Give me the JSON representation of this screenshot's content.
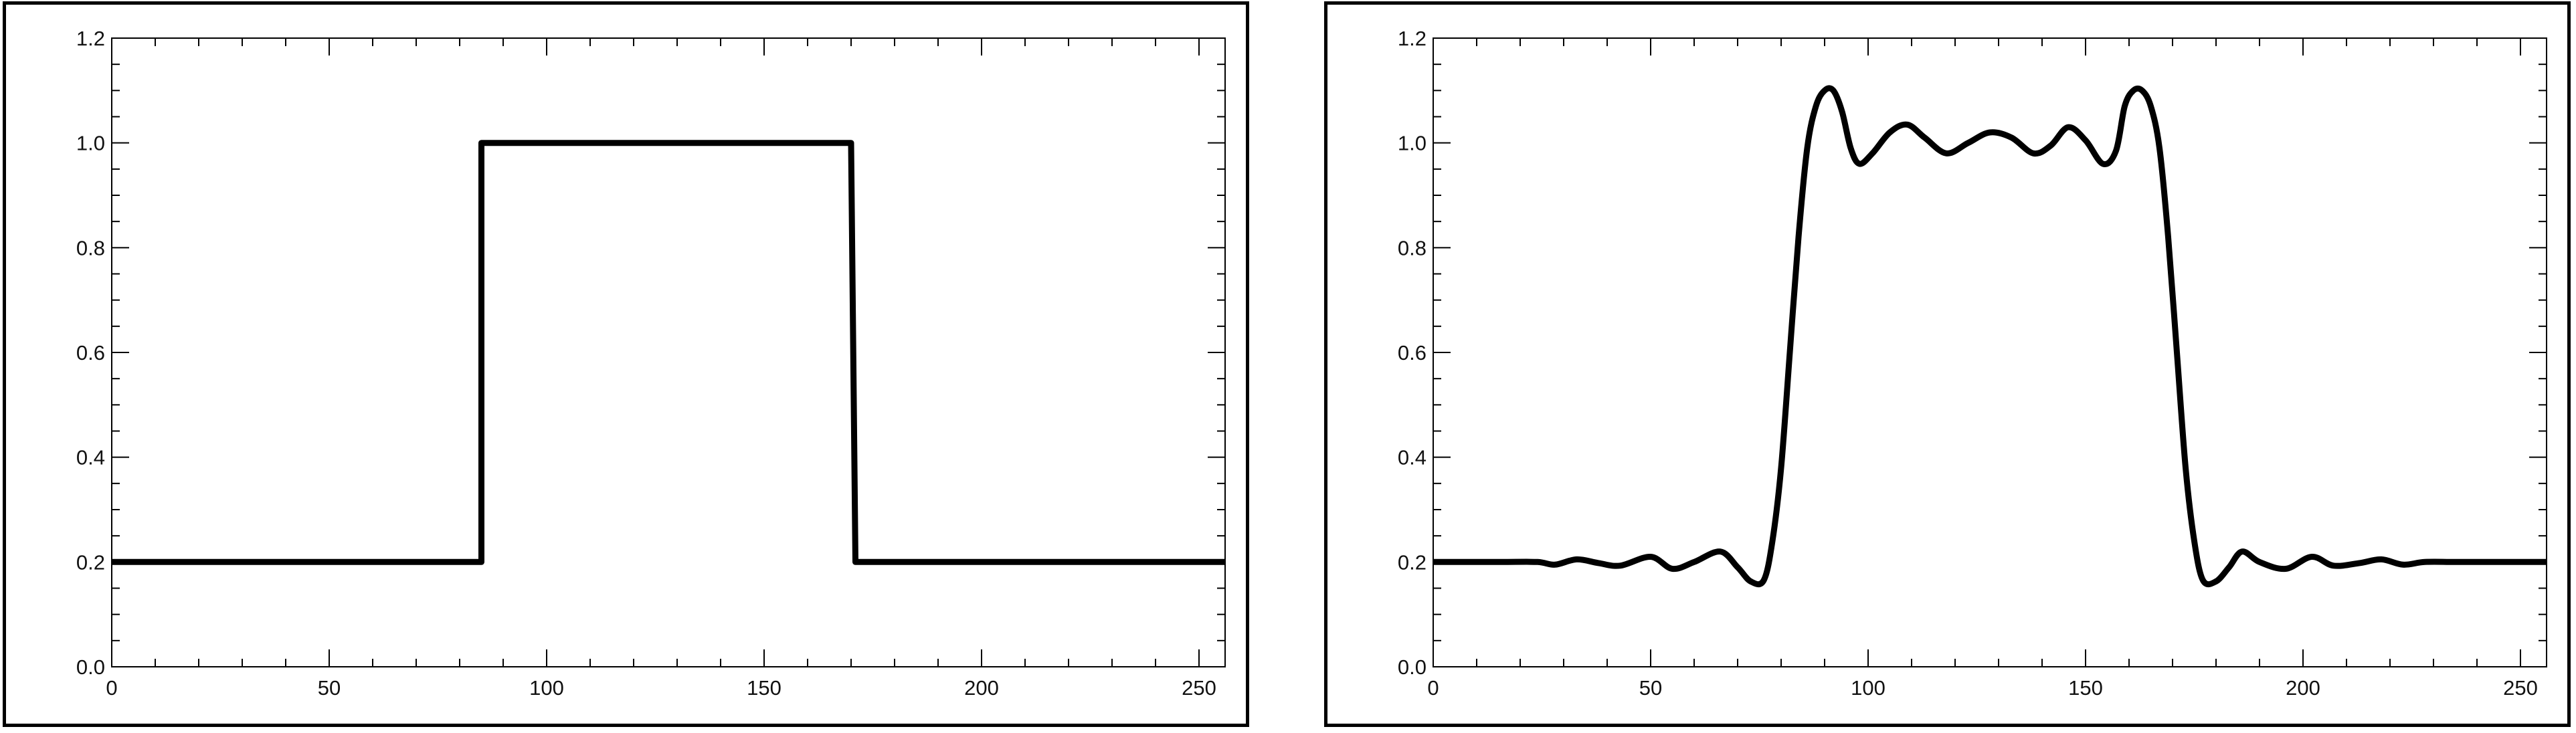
{
  "chart_data": [
    {
      "type": "line",
      "title": "",
      "xlabel": "",
      "ylabel": "",
      "xlim": [
        0,
        256
      ],
      "ylim": [
        0,
        1.2
      ],
      "x_ticks": [
        0,
        50,
        100,
        150,
        200,
        250
      ],
      "y_ticks": [
        0.0,
        0.2,
        0.4,
        0.6,
        0.8,
        1.0,
        1.2
      ],
      "x_tick_labels": [
        "0",
        "50",
        "100",
        "150",
        "200",
        "250"
      ],
      "y_tick_labels": [
        "0.0",
        "0.2",
        "0.4",
        "0.6",
        "0.8",
        "1.0",
        "1.2"
      ],
      "grid": false,
      "color": "#000000",
      "series": [
        {
          "x": [
            0,
            85,
            85,
            86,
            170,
            171,
            256
          ],
          "y": [
            0.2,
            0.2,
            1.0,
            1.0,
            1.0,
            0.2,
            0.2
          ]
        }
      ]
    },
    {
      "type": "line",
      "title": "",
      "xlabel": "",
      "ylabel": "",
      "xlim": [
        0,
        256
      ],
      "ylim": [
        0,
        1.2
      ],
      "x_ticks": [
        0,
        50,
        100,
        150,
        200,
        250
      ],
      "y_ticks": [
        0.0,
        0.2,
        0.4,
        0.6,
        0.8,
        1.0,
        1.2
      ],
      "x_tick_labels": [
        "0",
        "50",
        "100",
        "150",
        "200",
        "250"
      ],
      "y_tick_labels": [
        "0.0",
        "0.2",
        "0.4",
        "0.6",
        "0.8",
        "1.0",
        "1.2"
      ],
      "grid": false,
      "color": "#000000",
      "series": [
        {
          "x": [
            0,
            8,
            16,
            24,
            28,
            33,
            38,
            43,
            50,
            55,
            60,
            66,
            70,
            73,
            76,
            78,
            80,
            82,
            84,
            86,
            88,
            90,
            92,
            94,
            96,
            98,
            101,
            105,
            109,
            113,
            118,
            123,
            128,
            133,
            138,
            142,
            146,
            150,
            154,
            157,
            159,
            161,
            163,
            165,
            167,
            169,
            171,
            173,
            175,
            177,
            180,
            183,
            186,
            190,
            196,
            202,
            207,
            213,
            218,
            223,
            228,
            235,
            245,
            256
          ],
          "y": [
            0.2,
            0.2,
            0.2,
            0.2,
            0.195,
            0.205,
            0.198,
            0.193,
            0.21,
            0.187,
            0.2,
            0.22,
            0.19,
            0.163,
            0.165,
            0.24,
            0.38,
            0.6,
            0.82,
            0.99,
            1.07,
            1.1,
            1.1,
            1.06,
            0.99,
            0.96,
            0.98,
            1.02,
            1.035,
            1.01,
            0.98,
            1.0,
            1.02,
            1.01,
            0.98,
            0.995,
            1.03,
            1.005,
            0.96,
            0.985,
            1.07,
            1.1,
            1.1,
            1.07,
            0.99,
            0.82,
            0.6,
            0.38,
            0.24,
            0.165,
            0.163,
            0.19,
            0.22,
            0.2,
            0.187,
            0.21,
            0.193,
            0.198,
            0.205,
            0.195,
            0.2,
            0.2,
            0.2,
            0.2
          ]
        }
      ]
    }
  ]
}
